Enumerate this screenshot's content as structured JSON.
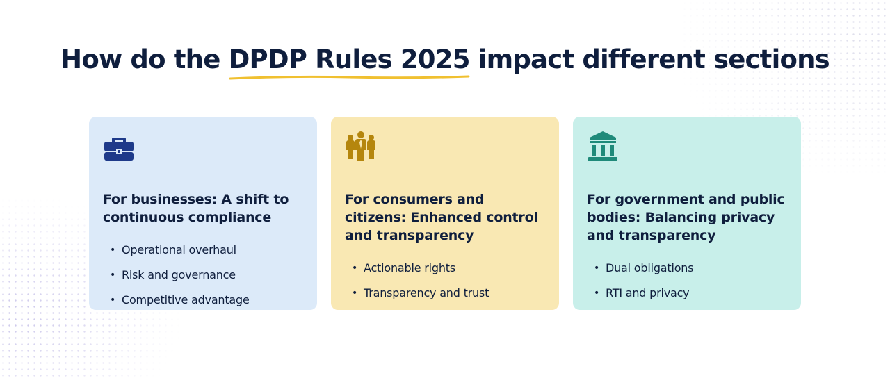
{
  "title": {
    "before": "How do the ",
    "highlight": "DPDP Rules 2025",
    "after": " impact different sections"
  },
  "colors": {
    "title_text": "#0f1e3d",
    "underline": "#f0c030",
    "card_business_bg": "#dceaf9",
    "card_consumer_bg": "#f9e8b3",
    "card_government_bg": "#c8efea",
    "icon_business": "#1e3a8a",
    "icon_consumer": "#b5860d",
    "icon_government": "#1f8a7a"
  },
  "cards": [
    {
      "icon": "briefcase-icon",
      "heading": "For businesses: A shift to continuous compliance",
      "items": [
        "Operational overhaul",
        "Risk and governance",
        "Competitive advantage"
      ]
    },
    {
      "icon": "people-group-icon",
      "heading": "For consumers and citizens: Enhanced control and transparency",
      "items": [
        "Actionable rights",
        "Transparency and trust"
      ]
    },
    {
      "icon": "government-building-icon",
      "heading": "For government and public bodies: Balancing privacy and transparency",
      "items": [
        "Dual obligations",
        "RTI and privacy"
      ]
    }
  ]
}
